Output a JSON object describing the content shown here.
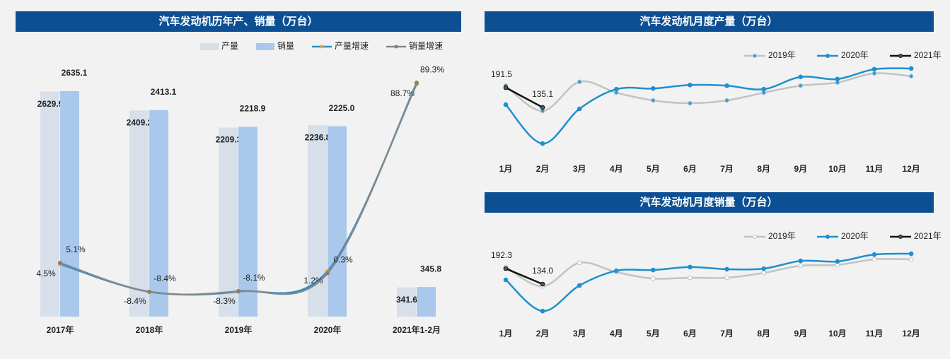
{
  "chart_data": [
    {
      "type": "combo",
      "title": "汽车发动机历年产、销量（万台）",
      "categories": [
        "2017年",
        "2018年",
        "2019年",
        "2020年",
        "2021年1-2月"
      ],
      "ylim": [
        0,
        2800
      ],
      "y2lim": [
        -20,
        92
      ],
      "series": [
        {
          "name": "产量",
          "type": "bar",
          "color": "#d6dfea",
          "values": [
            2629.9,
            2409.2,
            2209.3,
            2236.8,
            341.6
          ]
        },
        {
          "name": "销量",
          "type": "bar",
          "color": "#a9c8ec",
          "values": [
            2635.1,
            2413.1,
            2218.9,
            2225.0,
            345.8
          ],
          "value_labels": [
            "2635.1",
            "2413.1",
            "2218.9",
            "2225.0",
            "345.8"
          ]
        },
        {
          "name": "产量增速",
          "type": "line",
          "axis": "y2",
          "color": "#2e8bc9",
          "marker_color": "#e8a33c",
          "values": [
            4.5,
            -8.4,
            -8.3,
            1.2,
            88.7
          ],
          "value_labels": [
            "4.5%",
            "-8.4%",
            "-8.3%",
            "1.2%",
            "88.7%"
          ]
        },
        {
          "name": "销量增速",
          "type": "line",
          "axis": "y2",
          "color": "#808a8f",
          "marker_color": "#8a8068",
          "values": [
            5.1,
            -8.4,
            -8.1,
            0.3,
            89.3
          ],
          "value_labels": [
            "5.1%",
            "-8.4%",
            "-8.1%",
            "0.3%",
            "89.3%"
          ]
        }
      ]
    },
    {
      "type": "line",
      "title": "汽车发动机月度产量（万台）",
      "categories": [
        "1月",
        "2月",
        "3月",
        "4月",
        "5月",
        "6月",
        "7月",
        "8月",
        "9月",
        "10月",
        "11月",
        "12月"
      ],
      "ylim": [
        0,
        260
      ],
      "series": [
        {
          "name": "2019年",
          "color": "#c3c3c3",
          "marker_color": "#29a3d8",
          "values": [
            197,
            125,
            208,
            177,
            155,
            147,
            155,
            177,
            197,
            206,
            232,
            224
          ]
        },
        {
          "name": "2020年",
          "color": "#1f8fcf",
          "marker_color": "#1f8fcf",
          "values": [
            143,
            32,
            131,
            187,
            189,
            199,
            197,
            187,
            222,
            216,
            244,
            246
          ]
        },
        {
          "name": "2021年",
          "color": "#111111",
          "marker_color": "#555555",
          "values": [
            191.5,
            135.1,
            null,
            null,
            null,
            null,
            null,
            null,
            null,
            null,
            null,
            null
          ],
          "show_labels": true
        }
      ]
    },
    {
      "type": "line",
      "title": "汽车发动机月度销量（万台）",
      "categories": [
        "1月",
        "2月",
        "3月",
        "4月",
        "5月",
        "6月",
        "7月",
        "8月",
        "9月",
        "10月",
        "11月",
        "12月"
      ],
      "ylim": [
        0,
        260
      ],
      "series": [
        {
          "name": "2019年",
          "color": "#c3c3c3",
          "marker_color": "#ffffff",
          "values": [
            198,
            126,
            214,
            179,
            155,
            158,
            158,
            176,
            203,
            206,
            227,
            227
          ]
        },
        {
          "name": "2020年",
          "color": "#1f8fcf",
          "marker_color": "#1f8fcf",
          "values": [
            150,
            33,
            129,
            184,
            187,
            198,
            190,
            192,
            221,
            219,
            245,
            248
          ]
        },
        {
          "name": "2021年",
          "color": "#111111",
          "marker_color": "#555555",
          "values": [
            192.3,
            134.0,
            null,
            null,
            null,
            null,
            null,
            null,
            null,
            null,
            null,
            null
          ],
          "value_labels": [
            "192.3",
            "134.0",
            null,
            null,
            null,
            null,
            null,
            null,
            null,
            null,
            null,
            null
          ],
          "show_labels": true
        }
      ]
    }
  ]
}
